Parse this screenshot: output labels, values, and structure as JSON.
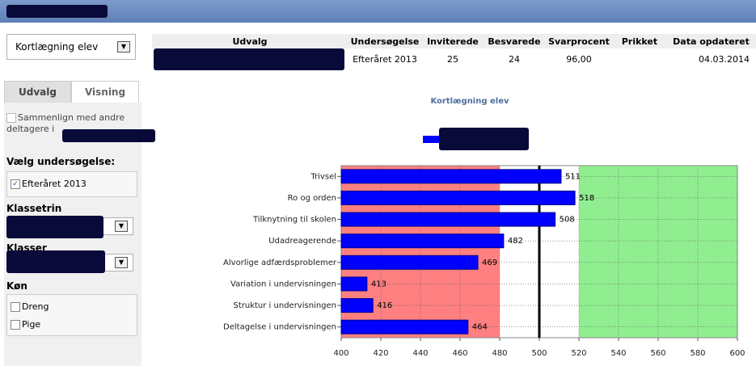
{
  "selector": {
    "value": "Kortlægning elev"
  },
  "table": {
    "headers": [
      "Udvalg",
      "Undersøgelse",
      "Inviterede",
      "Besvarede",
      "Svarprocent",
      "Prikket",
      "Data opdateret"
    ],
    "rows": [
      [
        null,
        "Efteråret 2013",
        25,
        24,
        "96,00",
        null,
        "04.03.2014"
      ]
    ]
  },
  "tabs": [
    "Udvalg",
    "Visning"
  ],
  "sidebar": {
    "compare_label": "Sammenlign med andre deltagere i",
    "survey_heading": "Vælg undersøgelse:",
    "survey_option": "Efteråret 2013",
    "grade_heading": "Klassetrin",
    "class_heading": "Klasser",
    "gender_heading": "Køn",
    "gender_options": [
      "Dreng",
      "Pige"
    ]
  },
  "chart_data": {
    "type": "hbar",
    "title": "Kortlægning elev",
    "categories": [
      "Trivsel",
      "Ro og orden",
      "Tilknytning til skolen",
      "Udadreagerende",
      "Alvorlige adfærdsproblemer",
      "Variation i undervisningen",
      "Struktur i undervisningen",
      "Deltagelse i undervisningen"
    ],
    "values": [
      511,
      518,
      508,
      482,
      469,
      413,
      416,
      464
    ],
    "color": "#0000ff",
    "xlim": [
      400,
      600
    ],
    "xticks": [
      400,
      420,
      440,
      460,
      480,
      500,
      520,
      540,
      560,
      580,
      600
    ],
    "grid": true,
    "zones": [
      {
        "from": 400,
        "to": 480,
        "color": "#ff8080"
      },
      {
        "from": 480,
        "to": 520,
        "color": "#ffffff"
      },
      {
        "from": 520,
        "to": 600,
        "color": "#90ee90"
      }
    ],
    "reference_line": 500
  }
}
